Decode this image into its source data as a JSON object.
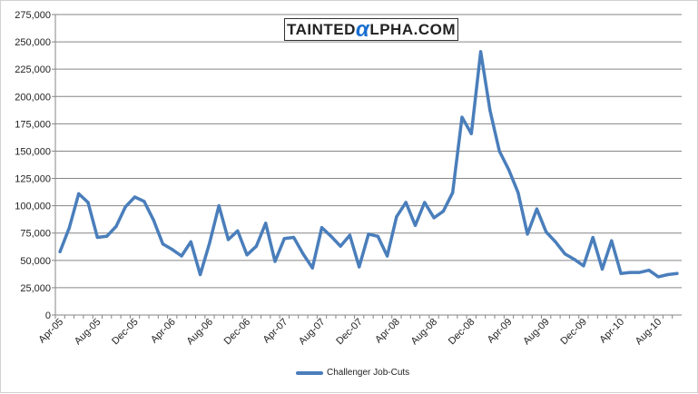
{
  "chart_data": {
    "type": "line",
    "title": "",
    "xlabel": "",
    "ylabel": "",
    "ylim": [
      0,
      275000
    ],
    "yticks": [
      0,
      25000,
      50000,
      75000,
      100000,
      125000,
      150000,
      175000,
      200000,
      225000,
      250000,
      275000
    ],
    "ytick_labels": [
      "0",
      "25,000",
      "50,000",
      "75,000",
      "100,000",
      "125,000",
      "150,000",
      "175,000",
      "200,000",
      "225,000",
      "250,000",
      "275,000"
    ],
    "grid": "horizontal",
    "legend_position": "bottom",
    "x": [
      "Apr-05",
      "May-05",
      "Jun-05",
      "Jul-05",
      "Aug-05",
      "Sep-05",
      "Oct-05",
      "Nov-05",
      "Dec-05",
      "Jan-06",
      "Feb-06",
      "Mar-06",
      "Apr-06",
      "May-06",
      "Jun-06",
      "Jul-06",
      "Aug-06",
      "Sep-06",
      "Oct-06",
      "Nov-06",
      "Dec-06",
      "Jan-07",
      "Feb-07",
      "Mar-07",
      "Apr-07",
      "May-07",
      "Jun-07",
      "Jul-07",
      "Aug-07",
      "Sep-07",
      "Oct-07",
      "Nov-07",
      "Dec-07",
      "Jan-08",
      "Feb-08",
      "Mar-08",
      "Apr-08",
      "May-08",
      "Jun-08",
      "Jul-08",
      "Aug-08",
      "Sep-08",
      "Oct-08",
      "Nov-08",
      "Dec-08",
      "Jan-09",
      "Feb-09",
      "Mar-09",
      "Apr-09",
      "May-09",
      "Jun-09",
      "Jul-09",
      "Aug-09",
      "Sep-09",
      "Oct-09",
      "Nov-09",
      "Dec-09",
      "Jan-10",
      "Feb-10",
      "Mar-10",
      "Apr-10",
      "May-10",
      "Jun-10",
      "Jul-10",
      "Aug-10",
      "Sep-10",
      "Oct-10"
    ],
    "xtick_labels": [
      "Apr-05",
      "Aug-05",
      "Dec-05",
      "Apr-06",
      "Aug-06",
      "Dec-06",
      "Apr-07",
      "Aug-07",
      "Dec-07",
      "Apr-08",
      "Aug-08",
      "Dec-08",
      "Apr-09",
      "Aug-09",
      "Dec-09",
      "Apr-10",
      "Aug-10"
    ],
    "series": [
      {
        "name": "Challenger Job-Cuts",
        "color": "#4a7ebb",
        "values": [
          58000,
          80000,
          111000,
          103000,
          71000,
          72000,
          81000,
          99000,
          108000,
          104000,
          87000,
          65000,
          60000,
          54000,
          67000,
          37000,
          66000,
          100000,
          69000,
          77000,
          55000,
          63000,
          84000,
          49000,
          70000,
          71000,
          56000,
          43000,
          80000,
          72000,
          63000,
          73000,
          44000,
          74000,
          72000,
          54000,
          90000,
          103000,
          82000,
          103000,
          89000,
          95000,
          112000,
          181000,
          166000,
          241000,
          187000,
          150000,
          133000,
          112000,
          74000,
          97000,
          76000,
          67000,
          56000,
          51000,
          45000,
          71000,
          42000,
          68000,
          38000,
          39000,
          39000,
          41000,
          35000,
          37000,
          38000
        ]
      }
    ]
  },
  "watermark": {
    "text_before": "TAINTED",
    "alpha": "α",
    "text_after": "LPHA.COM"
  }
}
